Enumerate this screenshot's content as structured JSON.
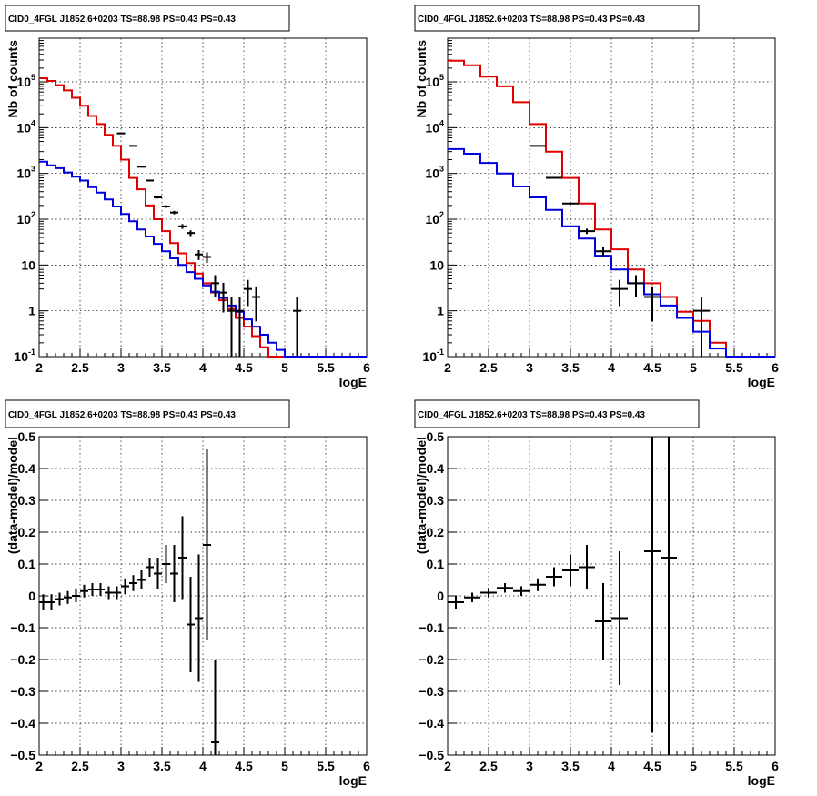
{
  "title": "CID0_4FGL J1852.6+0203 TS=88.98 PS=0.43 PS=0.43",
  "colors": {
    "data": "#000000",
    "total_model": "#e00000",
    "source_model": "#0000e0"
  },
  "chart_data": [
    {
      "type": "line",
      "title": "CID0_4FGL J1852.6+0203 TS=88.98 PS=0.43 PS=0.43",
      "xlabel": "logE",
      "ylabel": "Nb of counts",
      "yscale": "log",
      "xlim": [
        2,
        6
      ],
      "ylim": [
        0.1,
        900000
      ],
      "grid": true,
      "xticks": [
        "2",
        "2.5",
        "3",
        "3.5",
        "4",
        "4.5",
        "5",
        "5.5",
        "6"
      ],
      "yticks": [
        "10^-1",
        "1",
        "10",
        "10^2",
        "10^3",
        "10^4",
        "10^5"
      ],
      "bin_edges": [
        2,
        2.1,
        2.2,
        2.3,
        2.4,
        2.5,
        2.6,
        2.7,
        2.8,
        2.9,
        3.0,
        3.1,
        3.2,
        3.3,
        3.4,
        3.5,
        3.6,
        3.7,
        3.8,
        3.9,
        4.0,
        4.1,
        4.2,
        4.3,
        4.4,
        4.5,
        4.6,
        4.7,
        4.8,
        4.9,
        5.0,
        5.1,
        5.2,
        5.3,
        5.4,
        5.5,
        5.6,
        5.7,
        5.8,
        5.9,
        6.0
      ],
      "series": [
        {
          "values": [
            120000,
            105000,
            85000,
            65000,
            45000,
            30000,
            18000,
            12000,
            7000,
            4000,
            2000,
            800,
            450,
            200,
            100,
            55,
            30,
            18,
            11,
            6.5,
            4,
            2.5,
            1.7,
            1.1,
            0.7,
            0.45,
            0.28,
            0.16,
            0.1,
            0.1,
            0.1,
            0.1,
            0.1,
            0.1,
            0.1,
            0.1,
            0.1,
            0.1,
            0.1,
            0.1
          ],
          "color": "#e00000"
        },
        {
          "values": [
            1800,
            1500,
            1300,
            1050,
            850,
            700,
            500,
            380,
            270,
            190,
            130,
            90,
            60,
            42,
            29,
            20,
            14,
            10,
            7,
            5,
            3.6,
            2.6,
            1.9,
            1.3,
            0.95,
            0.65,
            0.45,
            0.3,
            0.2,
            0.14,
            0.1,
            0.1,
            0.1,
            0.1,
            0.1,
            0.1,
            0.1,
            0.1,
            0.1,
            0.1
          ],
          "color": "#0000e0"
        }
      ],
      "points": [
        {
          "x": 3.0,
          "y": 7500
        },
        {
          "x": 3.15,
          "y": 4000
        },
        {
          "x": 3.25,
          "y": 1400
        },
        {
          "x": 3.35,
          "y": 700
        },
        {
          "x": 3.45,
          "y": 300
        },
        {
          "x": 3.55,
          "y": 190
        },
        {
          "x": 3.65,
          "y": 140
        },
        {
          "x": 3.75,
          "y": 70
        },
        {
          "x": 3.85,
          "y": 50
        },
        {
          "x": 3.95,
          "y": 17
        },
        {
          "x": 4.05,
          "y": 15
        },
        {
          "x": 4.15,
          "y": 4
        },
        {
          "x": 4.25,
          "y": 2.5
        },
        {
          "x": 4.35,
          "y": 1.0
        },
        {
          "x": 4.45,
          "y": 1.0
        },
        {
          "x": 4.55,
          "y": 3
        },
        {
          "x": 4.65,
          "y": 2
        },
        {
          "x": 5.15,
          "y": 1
        }
      ]
    },
    {
      "type": "line",
      "title": "CID0_4FGL J1852.6+0203 TS=88.98 PS=0.43 PS=0.43",
      "xlabel": "logE",
      "ylabel": "Nb of counts",
      "yscale": "log",
      "xlim": [
        2,
        6
      ],
      "ylim": [
        0.1,
        900000
      ],
      "grid": true,
      "xticks": [
        "2",
        "2.5",
        "3",
        "3.5",
        "4",
        "4.5",
        "5",
        "5.5",
        "6"
      ],
      "yticks": [
        "10^-1",
        "1",
        "10",
        "10^2",
        "10^3",
        "10^4",
        "10^5"
      ],
      "bin_edges": [
        2,
        2.2,
        2.4,
        2.6,
        2.8,
        3.0,
        3.2,
        3.4,
        3.6,
        3.8,
        4.0,
        4.2,
        4.4,
        4.6,
        4.8,
        5.0,
        5.2,
        5.4,
        5.6,
        5.8,
        6.0
      ],
      "series": [
        {
          "values": [
            290000,
            230000,
            130000,
            80000,
            36000,
            12000,
            3000,
            800,
            220,
            60,
            22,
            8,
            4,
            2,
            0.95,
            0.6,
            0.2,
            0.1,
            0.1,
            0.1
          ],
          "color": "#e00000"
        },
        {
          "values": [
            3400,
            2700,
            1700,
            1000,
            520,
            300,
            160,
            70,
            38,
            16,
            8,
            4,
            2.3,
            1.3,
            0.7,
            0.35,
            0.15,
            0.1,
            0.1,
            0.1
          ],
          "color": "#0000e0"
        }
      ],
      "points": [
        {
          "x": 3.1,
          "y": 4000
        },
        {
          "x": 3.3,
          "y": 800
        },
        {
          "x": 3.5,
          "y": 220
        },
        {
          "x": 3.7,
          "y": 55
        },
        {
          "x": 3.9,
          "y": 20
        },
        {
          "x": 4.1,
          "y": 3
        },
        {
          "x": 4.3,
          "y": 4
        },
        {
          "x": 4.5,
          "y": 2
        },
        {
          "x": 5.1,
          "y": 1
        }
      ]
    },
    {
      "type": "scatter",
      "title": "CID0_4FGL J1852.6+0203 TS=88.98 PS=0.43 PS=0.43",
      "xlabel": "logE",
      "ylabel": "(data-model)/model",
      "xlim": [
        2,
        6
      ],
      "ylim": [
        -0.5,
        0.5
      ],
      "grid": true,
      "xticks": [
        "2",
        "2.5",
        "3",
        "3.5",
        "4",
        "4.5",
        "5",
        "5.5",
        "6"
      ],
      "yticks": [
        "−0.5",
        "−0.4",
        "−0.3",
        "−0.2",
        "−0.1",
        "0",
        "0.1",
        "0.2",
        "0.3",
        "0.4",
        "0.5"
      ],
      "points": [
        {
          "x": 2.05,
          "y": -0.02,
          "err": 0.025
        },
        {
          "x": 2.15,
          "y": -0.02,
          "err": 0.025
        },
        {
          "x": 2.25,
          "y": -0.01,
          "err": 0.02
        },
        {
          "x": 2.35,
          "y": -0.005,
          "err": 0.02
        },
        {
          "x": 2.45,
          "y": 0.0,
          "err": 0.02
        },
        {
          "x": 2.55,
          "y": 0.015,
          "err": 0.02
        },
        {
          "x": 2.65,
          "y": 0.02,
          "err": 0.02
        },
        {
          "x": 2.75,
          "y": 0.02,
          "err": 0.02
        },
        {
          "x": 2.85,
          "y": 0.01,
          "err": 0.02
        },
        {
          "x": 2.95,
          "y": 0.01,
          "err": 0.02
        },
        {
          "x": 3.05,
          "y": 0.03,
          "err": 0.025
        },
        {
          "x": 3.15,
          "y": 0.04,
          "err": 0.025
        },
        {
          "x": 3.25,
          "y": 0.05,
          "err": 0.03
        },
        {
          "x": 3.35,
          "y": 0.09,
          "err": 0.03
        },
        {
          "x": 3.45,
          "y": 0.07,
          "err": 0.05
        },
        {
          "x": 3.55,
          "y": 0.1,
          "err": 0.06
        },
        {
          "x": 3.65,
          "y": 0.07,
          "err": 0.09
        },
        {
          "x": 3.75,
          "y": 0.12,
          "err": 0.13
        },
        {
          "x": 3.85,
          "y": -0.09,
          "err": 0.15
        },
        {
          "x": 3.95,
          "y": -0.07,
          "err": 0.2
        },
        {
          "x": 4.05,
          "y": 0.16,
          "err": 0.3
        },
        {
          "x": 4.15,
          "y": -0.46,
          "err": 0.26
        }
      ]
    },
    {
      "type": "scatter",
      "title": "CID0_4FGL J1852.6+0203 TS=88.98 PS=0.43 PS=0.43",
      "xlabel": "logE",
      "ylabel": "(data-model)/model",
      "xlim": [
        2,
        6
      ],
      "ylim": [
        -0.5,
        0.5
      ],
      "grid": true,
      "xticks": [
        "2",
        "2.5",
        "3",
        "3.5",
        "4",
        "4.5",
        "5",
        "5.5",
        "6"
      ],
      "yticks": [
        "−0.5",
        "−0.4",
        "−0.3",
        "−0.2",
        "−0.1",
        "0",
        "0.1",
        "0.2",
        "0.3",
        "0.4",
        "0.5"
      ],
      "points": [
        {
          "x": 2.1,
          "y": -0.02,
          "err": 0.02
        },
        {
          "x": 2.3,
          "y": -0.005,
          "err": 0.015
        },
        {
          "x": 2.5,
          "y": 0.01,
          "err": 0.015
        },
        {
          "x": 2.7,
          "y": 0.025,
          "err": 0.015
        },
        {
          "x": 2.9,
          "y": 0.015,
          "err": 0.015
        },
        {
          "x": 3.1,
          "y": 0.035,
          "err": 0.02
        },
        {
          "x": 3.3,
          "y": 0.06,
          "err": 0.03
        },
        {
          "x": 3.5,
          "y": 0.08,
          "err": 0.05
        },
        {
          "x": 3.7,
          "y": 0.09,
          "err": 0.07
        },
        {
          "x": 3.9,
          "y": -0.08,
          "err": 0.12
        },
        {
          "x": 4.1,
          "y": -0.07,
          "err": 0.21
        },
        {
          "x": 4.5,
          "y": 0.14,
          "err": 0.57
        },
        {
          "x": 4.7,
          "y": 0.12,
          "err": 0.65
        }
      ]
    }
  ]
}
